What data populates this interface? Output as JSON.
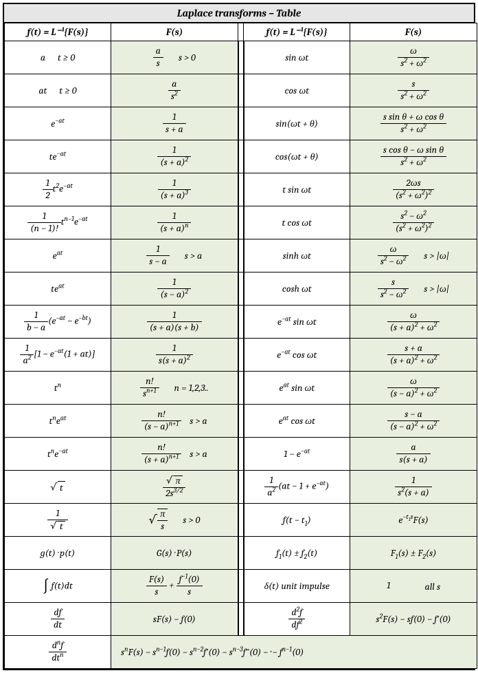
{
  "title": "Laplace transforms – Table",
  "header": {
    "ft": "f(t) =  L⁻¹{F(s)}",
    "fs": "F(s)"
  },
  "colors": {
    "title_bg": "#e6e6e6",
    "fs_bg": "#e9efdf",
    "ft_bg": "#ffffff",
    "border": "#000000"
  },
  "rows": [
    {
      "l_ft": "a<span class='gap'></span>t ≥ 0",
      "l_fs": "<span class='frac'><span class='num'>a</span><span class='den'>s</span></span><span class='cond'>s > 0</span>",
      "r_ft": "sin <i>ωt</i>",
      "r_fs": "<span class='frac'><span class='num'>ω</span><span class='den'>s<sup>2</sup> + ω<sup>2</sup></span></span>"
    },
    {
      "l_ft": "at<span class='gap'></span>t ≥ 0",
      "l_fs": "<span class='frac'><span class='num'>a</span><span class='den'>s<sup>2</sup></span></span>",
      "r_ft": "cos <i>ωt</i>",
      "r_fs": "<span class='frac'><span class='num'>s</span><span class='den'>s<sup>2</sup> + ω<sup>2</sup></span></span>"
    },
    {
      "l_ft": "e<sup>−at</sup>",
      "l_fs": "<span class='frac'><span class='num'>1</span><span class='den'>s + a</span></span>",
      "r_ft": "sin(<i>ωt + θ</i>)",
      "r_fs": "<span class='frac'><span class='num'>s sin θ + ω cos θ</span><span class='den'>s<sup>2</sup> + ω<sup>2</sup></span></span>"
    },
    {
      "l_ft": "te<sup>−at</sup>",
      "l_fs": "<span class='frac'><span class='num'>1</span><span class='den'>(s + a)<sup>2</sup></span></span>",
      "r_ft": "cos(<i>ωt + θ</i>)",
      "r_fs": "<span class='frac'><span class='num'>s cos θ − ω sin θ</span><span class='den'>s<sup>2</sup> + ω<sup>2</sup></span></span>"
    },
    {
      "l_ft": "<span class='frac'><span class='num'>1</span><span class='den'>2</span></span>t<sup>2</sup>e<sup>−at</sup>",
      "l_fs": "<span class='frac'><span class='num'>1</span><span class='den'>(s + a)<sup>3</sup></span></span>",
      "r_ft": "t sin <i>ωt</i>",
      "r_fs": "<span class='frac'><span class='num'>2ωs</span><span class='den'>(s<sup>2</sup> + ω<sup>2</sup>)<sup>2</sup></span></span>"
    },
    {
      "l_ft": "<span class='frac'><span class='num'>1</span><span class='den'>(n − 1)!</span></span>t<sup>n−1</sup>e<sup>−at</sup>",
      "l_fs": "<span class='frac'><span class='num'>1</span><span class='den'>(s + a)<sup>n</sup></span></span>",
      "r_ft": "t cos <i>ωt</i>",
      "r_fs": "<span class='frac'><span class='num'>s<sup>2</sup> − ω<sup>2</sup></span><span class='den'>(s<sup>2</sup> + ω<sup>2</sup>)<sup>2</sup></span></span>"
    },
    {
      "l_ft": "e<sup>at</sup>",
      "l_fs": "<span class='frac'><span class='num'>1</span><span class='den'>s − a</span></span><span class='cond'>s > a</span>",
      "r_ft": "sinh <i>ωt</i>",
      "r_fs": "<span class='frac'><span class='num'>ω</span><span class='den'>s<sup>2</sup> − ω<sup>2</sup></span></span><span class='cond'>s > |ω|</span>"
    },
    {
      "l_ft": "te<sup>at</sup>",
      "l_fs": "<span class='frac'><span class='num'>1</span><span class='den'>(s − a)<sup>2</sup></span></span>",
      "r_ft": "cosh <i>ωt</i>",
      "r_fs": "<span class='frac'><span class='num'>s</span><span class='den'>s<sup>2</sup> − ω<sup>2</sup></span></span><span class='cond'>s > |ω|</span>"
    },
    {
      "l_ft": "<span class='frac'><span class='num'>1</span><span class='den'>b − a</span></span>(e<sup>−at</sup> − e<sup>−bt</sup>)",
      "l_fs": "<span class='frac'><span class='num'>1</span><span class='den'>(s + a)(s + b)</span></span>",
      "r_ft": "e<sup>−at</sup> sin <i>ωt</i>",
      "r_fs": "<span class='frac'><span class='num'>ω</span><span class='den'>(s + a)<sup>2</sup> + ω<sup>2</sup></span></span>"
    },
    {
      "l_ft": "<span class='frac'><span class='num'>1</span><span class='den'>a<sup>2</sup></span></span>[1 − e<sup>−at</sup>(1 + at)]",
      "l_fs": "<span class='frac'><span class='num'>1</span><span class='den'>s(s + a)<sup>2</sup></span></span>",
      "r_ft": "e<sup>−at</sup> cos <i>ωt</i>",
      "r_fs": "<span class='frac'><span class='num'>s + a</span><span class='den'>(s + a)<sup>2</sup> + ω<sup>2</sup></span></span>"
    },
    {
      "l_ft": "t<sup>n</sup>",
      "l_fs": "<span class='frac'><span class='num'>n!</span><span class='den'>s<sup>n+1</sup></span></span><span class='cond'>n = 1,2,3..</span>",
      "r_ft": "e<sup>at</sup> sin <i>ωt</i>",
      "r_fs": "<span class='frac'><span class='num'>ω</span><span class='den'>(s − a)<sup>2</sup> + ω<sup>2</sup></span></span>"
    },
    {
      "l_ft": "t<sup>n</sup>e<sup>at</sup>",
      "l_fs": "<span class='frac'><span class='num'>n!</span><span class='den'>(s − a)<sup>n+1</sup></span></span><span class='cond' style='margin-left:12px'>s > a</span>",
      "r_ft": "e<sup>at</sup> cos <i>ωt</i>",
      "r_fs": "<span class='frac'><span class='num'>s − a</span><span class='den'>(s − a)<sup>2</sup> + ω<sup>2</sup></span></span>"
    },
    {
      "l_ft": "t<sup>n</sup>e<sup>−at</sup>",
      "l_fs": "<span class='frac'><span class='num'>n!</span><span class='den'>(s + a)<sup>n+1</sup></span></span><span class='cond' style='margin-left:12px'>s > a</span>",
      "r_ft": "1 − e<sup>−at</sup>",
      "r_fs": "<span class='frac'><span class='num'>a</span><span class='den'>s(s + a)</span></span>"
    },
    {
      "l_ft": "<span class='sqrt'>√<span class='rad'>t</span></span>",
      "l_fs": "<span class='frac'><span class='num'><span class='sqrt'>√<span class='rad'>π</span></span></span><span class='den'>2s<sup>3/2</sup></span></span>",
      "r_ft": "<span class='frac'><span class='num'>1</span><span class='den'>a<sup>2</sup></span></span>(at − 1 + e<sup>−at</sup>)",
      "r_fs": "<span class='frac'><span class='num'>1</span><span class='den'>s<sup>2</sup>(s + a)</span></span>"
    },
    {
      "l_ft": "<span class='frac'><span class='num'>1</span><span class='den'><span class='sqrt'>√<span class='rad'>t</span></span></span></span>",
      "l_fs": "<span style='font-size:17px;vertical-align:middle'>√</span><span class='frac' style='border-top:1px solid #000;'><span class='num'>π</span><span class='den'>s</span></span><span class='cond'>s > 0</span>",
      "r_ft": "f(t − t<sub>1</sub>)",
      "r_fs": "e<sup>−t<sub>1</sub>s</sup>F(s)"
    },
    {
      "l_ft": "g(t) · p(t)",
      "l_fs": "G(s) · P(s)",
      "r_ft": "f<sub>1</sub>(t) ± f<sub>2</sub>(t)",
      "r_fs": "F<sub>1</sub>(s) ± F<sub>2</sub>(s)"
    },
    {
      "l_ft": "<span class='int'>∫</span> f(t)dt",
      "l_fs": "<span class='frac'><span class='num'>F(s)</span><span class='den'>s</span></span> + <span class='frac'><span class='num'>f<sup>−1</sup>(0)</span><span class='den'>s</span></span>",
      "r_ft": "δ(t) unit impulse",
      "r_fs": "1<span class='cond' style='margin-left:50px'>all s</span>"
    },
    {
      "l_ft": "<span class='frac'><span class='num'>df</span><span class='den'>dt</span></span>",
      "l_fs": "sF(s) − f(0)",
      "r_ft": "<span class='frac'><span class='num'>d<sup>2</sup>f</span><span class='den'>df<sup>2</sup></span></span>",
      "r_fs": "s<sup>2</sup>F(s) − sf(0) − f′(0)"
    }
  ],
  "last_row": {
    "ft": "<span class='frac'><span class='num'>d<sup>n</sup>f</span><span class='den'>dt<sup>n</sup></span></span>",
    "fs": "s<sup>n</sup>F(s) − s<sup>n−1</sup>f(0) − s<sup>n−2</sup>f′(0) − s<sup>n−3</sup>f″(0) − ··· − f<sup>n−1</sup>(0)"
  }
}
